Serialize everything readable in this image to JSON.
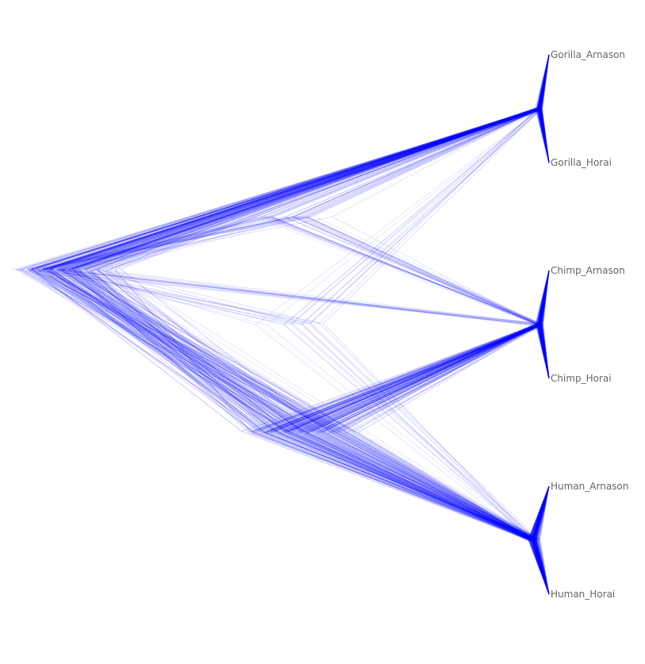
{
  "tree": {
    "line_color": "#0000ff",
    "label_color": "#666666",
    "background": "#ffffff",
    "leaves": [
      {
        "id": "gorilla_arnason",
        "label": "Gorilla_Arnason"
      },
      {
        "id": "gorilla_horai",
        "label": "Gorilla_Horai"
      },
      {
        "id": "chimp_arnason",
        "label": "Chimp_Arnason"
      },
      {
        "id": "chimp_horai",
        "label": "Chimp_Horai"
      },
      {
        "id": "human_arnason",
        "label": "Human_Arnason"
      },
      {
        "id": "human_horai",
        "label": "Human_Horai"
      }
    ]
  }
}
